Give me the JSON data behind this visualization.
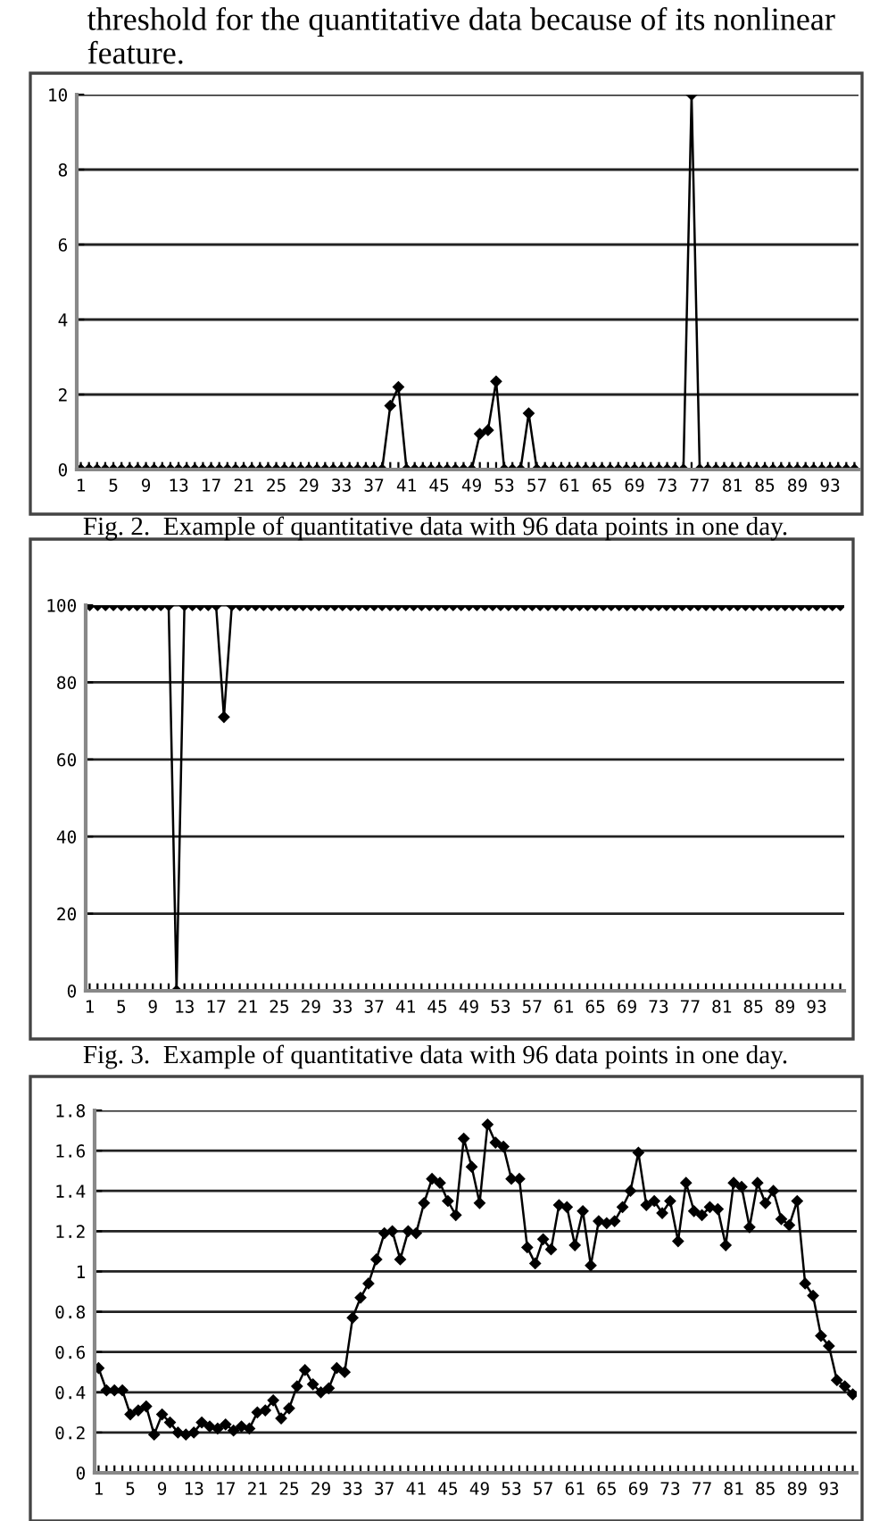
{
  "chart_data": [
    {
      "type": "line",
      "annotations": [
        "threshold for the quantitative data because of its nonlinear feature.",
        "Fig. 2.  Example of quantitative data with 96 data points in one day."
      ],
      "categories": [
        "1",
        null,
        null,
        null,
        "5",
        null,
        null,
        null,
        "9",
        null,
        null,
        null,
        "13",
        null,
        null,
        null,
        "17",
        null,
        null,
        null,
        "21",
        null,
        null,
        null,
        "25",
        null,
        null,
        null,
        "29",
        null,
        null,
        null,
        "33",
        null,
        null,
        null,
        "37",
        null,
        null,
        null,
        "41",
        null,
        null,
        null,
        "45",
        null,
        null,
        null,
        "49",
        null,
        null,
        null,
        "53",
        null,
        null,
        null,
        "57",
        null,
        null,
        null,
        "61",
        null,
        null,
        null,
        "65",
        null,
        null,
        null,
        "69",
        null,
        null,
        null,
        "73",
        null,
        null,
        null,
        "77",
        null,
        null,
        null,
        "81",
        null,
        null,
        null,
        "85",
        null,
        null,
        null,
        "89",
        null,
        null,
        null,
        "93",
        null,
        null,
        null
      ],
      "series": [
        {
          "color": "#000000",
          "values": [
            0,
            0,
            0,
            0,
            0,
            0,
            0,
            0,
            0,
            0,
            0,
            0,
            0,
            0,
            0,
            0,
            0,
            0,
            0,
            0,
            0,
            0,
            0,
            0,
            0,
            0,
            0,
            0,
            0,
            0,
            0,
            0,
            0,
            0,
            0,
            0,
            0,
            0,
            1.7,
            2.2,
            0,
            0,
            0,
            0,
            0,
            0,
            0,
            0,
            0,
            0.95,
            1.05,
            2.35,
            0,
            0,
            0,
            1.5,
            0,
            0,
            0,
            0,
            0,
            0,
            0,
            0,
            0,
            0,
            0,
            0,
            0,
            0,
            0,
            0,
            0,
            0,
            0,
            10,
            0,
            0,
            0,
            0,
            0,
            0,
            0,
            0,
            0,
            0,
            0,
            0,
            0,
            0,
            0,
            0,
            0,
            0,
            0,
            0
          ]
        }
      ],
      "ylim": [
        0,
        10
      ],
      "yticks": [
        0,
        2,
        4,
        6,
        8,
        10
      ],
      "grid": "y",
      "marker": "diamond",
      "line_style": "solid",
      "legend": false
    },
    {
      "type": "line",
      "annotations": [
        "Fig. 3.  Example of quantitative data with 96 data points in one day."
      ],
      "categories": [
        "1",
        null,
        null,
        null,
        "5",
        null,
        null,
        null,
        "9",
        null,
        null,
        null,
        "13",
        null,
        null,
        null,
        "17",
        null,
        null,
        null,
        "21",
        null,
        null,
        null,
        "25",
        null,
        null,
        null,
        "29",
        null,
        null,
        null,
        "33",
        null,
        null,
        null,
        "37",
        null,
        null,
        null,
        "41",
        null,
        null,
        null,
        "45",
        null,
        null,
        null,
        "49",
        null,
        null,
        null,
        "53",
        null,
        null,
        null,
        "57",
        null,
        null,
        null,
        "61",
        null,
        null,
        null,
        "65",
        null,
        null,
        null,
        "69",
        null,
        null,
        null,
        "73",
        null,
        null,
        null,
        "77",
        null,
        null,
        null,
        "81",
        null,
        null,
        null,
        "85",
        null,
        null,
        null,
        "89",
        null,
        null,
        null,
        "93",
        null,
        null,
        null
      ],
      "series": [
        {
          "color": "#000000",
          "values": [
            100,
            100,
            100,
            100,
            100,
            100,
            100,
            100,
            100,
            100,
            100,
            0,
            100,
            100,
            100,
            100,
            100,
            71,
            100,
            100,
            100,
            100,
            100,
            100,
            100,
            100,
            100,
            100,
            100,
            100,
            100,
            100,
            100,
            100,
            100,
            100,
            100,
            100,
            100,
            100,
            100,
            100,
            100,
            100,
            100,
            100,
            100,
            100,
            100,
            100,
            100,
            100,
            100,
            100,
            100,
            100,
            100,
            100,
            100,
            100,
            100,
            100,
            100,
            100,
            100,
            100,
            100,
            100,
            100,
            100,
            100,
            100,
            100,
            100,
            100,
            100,
            100,
            100,
            100,
            100,
            100,
            100,
            100,
            100,
            100,
            100,
            100,
            100,
            100,
            100,
            100,
            100,
            100,
            100,
            100,
            100
          ]
        }
      ],
      "ylim": [
        0,
        100
      ],
      "yticks": [
        0,
        20,
        40,
        60,
        80,
        100
      ],
      "grid": "y",
      "marker": "diamond",
      "line_style": "solid",
      "legend": false
    },
    {
      "type": "line",
      "categories": [
        "1",
        null,
        null,
        null,
        "5",
        null,
        null,
        null,
        "9",
        null,
        null,
        null,
        "13",
        null,
        null,
        null,
        "17",
        null,
        null,
        null,
        "21",
        null,
        null,
        null,
        "25",
        null,
        null,
        null,
        "29",
        null,
        null,
        null,
        "33",
        null,
        null,
        null,
        "37",
        null,
        null,
        null,
        "41",
        null,
        null,
        null,
        "45",
        null,
        null,
        null,
        "49",
        null,
        null,
        null,
        "53",
        null,
        null,
        null,
        "57",
        null,
        null,
        null,
        "61",
        null,
        null,
        null,
        "65",
        null,
        null,
        null,
        "69",
        null,
        null,
        null,
        "73",
        null,
        null,
        null,
        "77",
        null,
        null,
        null,
        "81",
        null,
        null,
        null,
        "85",
        null,
        null,
        null,
        "89",
        null,
        null,
        null,
        "93",
        null,
        null,
        null
      ],
      "series": [
        {
          "color": "#000000",
          "values": [
            0.52,
            0.41,
            0.41,
            0.41,
            0.29,
            0.31,
            0.33,
            0.19,
            0.29,
            0.25,
            0.2,
            0.19,
            0.2,
            0.25,
            0.23,
            0.22,
            0.24,
            0.21,
            0.23,
            0.22,
            0.3,
            0.31,
            0.36,
            0.27,
            0.32,
            0.43,
            0.51,
            0.44,
            0.4,
            0.42,
            0.52,
            0.5,
            0.77,
            0.87,
            0.94,
            1.06,
            1.19,
            1.2,
            1.06,
            1.2,
            1.19,
            1.34,
            1.46,
            1.44,
            1.35,
            1.28,
            1.66,
            1.52,
            1.34,
            1.73,
            1.64,
            1.62,
            1.46,
            1.46,
            1.12,
            1.04,
            1.16,
            1.11,
            1.33,
            1.32,
            1.13,
            1.3,
            1.03,
            1.25,
            1.24,
            1.25,
            1.32,
            1.4,
            1.59,
            1.33,
            1.35,
            1.29,
            1.35,
            1.15,
            1.44,
            1.3,
            1.28,
            1.32,
            1.31,
            1.13,
            1.44,
            1.42,
            1.22,
            1.44,
            1.34,
            1.4,
            1.26,
            1.23,
            1.35,
            0.94,
            0.88,
            0.68,
            0.63,
            0.46,
            0.43,
            0.39
          ]
        }
      ],
      "ylim": [
        0,
        1.8
      ],
      "yticks": [
        0,
        {
          "value": 0.2,
          "label": "0.2"
        },
        {
          "value": 0.4,
          "label": "0.4"
        },
        {
          "value": 0.6,
          "label": "0.6"
        },
        {
          "value": 0.8,
          "label": "0.8"
        },
        1,
        {
          "value": 1.2,
          "label": "1.2"
        },
        {
          "value": 1.4,
          "label": "1.4"
        },
        {
          "value": 1.6,
          "label": "1.6"
        },
        {
          "value": 1.8,
          "label": "1.8"
        }
      ],
      "grid": "y",
      "marker": "diamond",
      "line_style": "solid",
      "legend": false
    }
  ]
}
